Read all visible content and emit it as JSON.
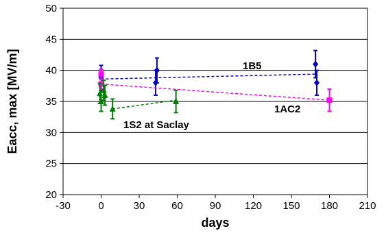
{
  "chart_data": {
    "type": "scatter",
    "xlabel": "days",
    "ylabel": "Eacc, max [MV/m]",
    "xlim": [
      -30,
      210
    ],
    "ylim": [
      20,
      50
    ],
    "x_ticks": [
      "-30",
      "0",
      "30",
      "60",
      "90",
      "120",
      "150",
      "180",
      "210"
    ],
    "y_ticks": [
      "20",
      "25",
      "30",
      "35",
      "40",
      "45",
      "50"
    ],
    "grid": "horizontal",
    "series": [
      {
        "name": "1B5",
        "color": "#0000cc",
        "marker": "diamond",
        "trend": [
          [
            0,
            38.6
          ],
          [
            170,
            39.4
          ]
        ],
        "points": [
          {
            "x": 0,
            "y": 38.8,
            "err": 2.0
          },
          {
            "x": 43,
            "y": 38.0,
            "err": 2.0
          },
          {
            "x": 44,
            "y": 40.0,
            "err": 2.0
          },
          {
            "x": 169,
            "y": 41.0,
            "err": 2.2
          },
          {
            "x": 170,
            "y": 38.0,
            "err": 2.0
          }
        ]
      },
      {
        "name": "1AC2",
        "color": "#ff00ff",
        "marker": "square",
        "trend": [
          [
            0,
            37.8
          ],
          [
            180,
            35.2
          ]
        ],
        "points": [
          {
            "x": 0,
            "y": 39.4,
            "err": 0.8
          },
          {
            "x": 0,
            "y": 37.8,
            "err": 0.8
          },
          {
            "x": 180,
            "y": 35.2,
            "err": 1.8
          }
        ]
      },
      {
        "name": "1S2 at Saclay",
        "color": "#008000",
        "marker": "triangle",
        "trend": [
          [
            9,
            33.8
          ],
          [
            59,
            35.2
          ]
        ],
        "points": [
          {
            "x": -1,
            "y": 36.3,
            "err": 1.6
          },
          {
            "x": 0,
            "y": 35.0,
            "err": 1.6
          },
          {
            "x": 2,
            "y": 36.8,
            "err": 1.6
          },
          {
            "x": 3,
            "y": 36.0,
            "err": 1.6
          },
          {
            "x": 9,
            "y": 33.8,
            "err": 1.6
          },
          {
            "x": 59,
            "y": 35.0,
            "err": 1.8
          }
        ]
      }
    ]
  }
}
